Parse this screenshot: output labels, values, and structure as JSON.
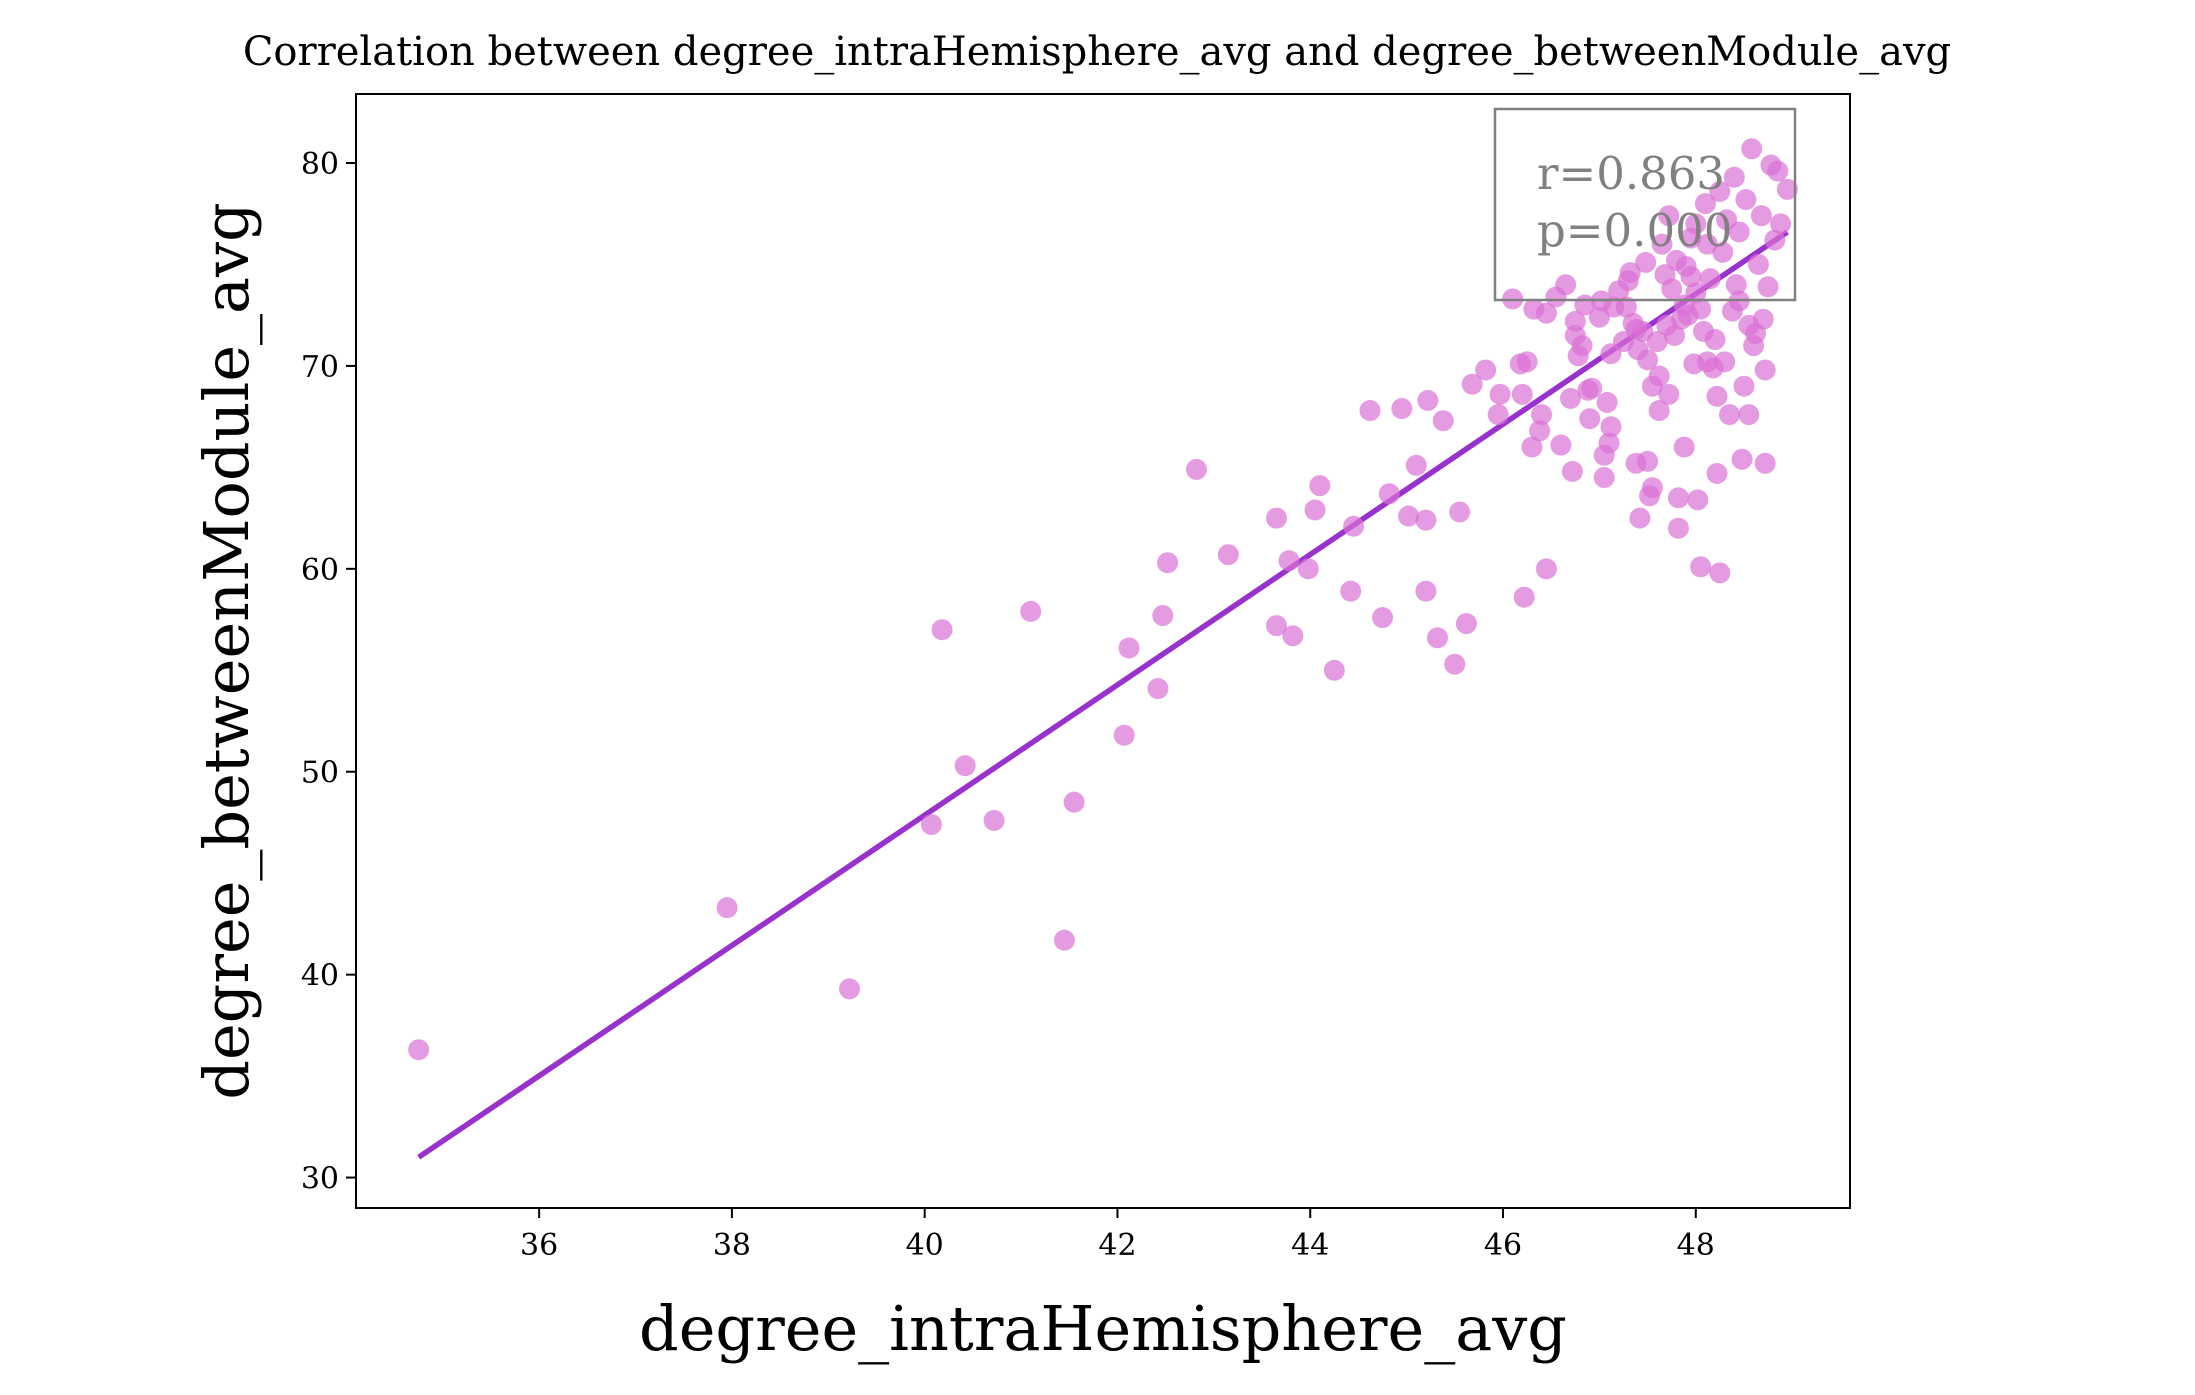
{
  "chart_data": {
    "type": "scatter",
    "title": "Correlation between degree_intraHemisphere_avg and degree_betweenModule_avg",
    "xlabel": "degree_intraHemisphere_avg",
    "ylabel": "degree_betweenModule_avg",
    "xlim": [
      34.1,
      49.6
    ],
    "ylim": [
      28.5,
      83.4
    ],
    "xticks": [
      36,
      38,
      40,
      42,
      44,
      46,
      48
    ],
    "yticks": [
      30,
      40,
      50,
      60,
      70,
      80
    ],
    "grid": false,
    "stats": {
      "r": "r=0.863",
      "p": "p=0.000"
    },
    "colors": {
      "points": "#da70d6",
      "regression": "#9932cc",
      "stats_box": "#808080"
    },
    "regression_line": [
      [
        34.75,
        31.0
      ],
      [
        48.95,
        76.6
      ]
    ],
    "points": [
      [
        34.75,
        36.3
      ],
      [
        37.95,
        43.3
      ],
      [
        39.22,
        39.3
      ],
      [
        40.07,
        47.4
      ],
      [
        40.18,
        57.0
      ],
      [
        40.42,
        50.3
      ],
      [
        40.72,
        47.6
      ],
      [
        41.1,
        57.9
      ],
      [
        41.45,
        41.7
      ],
      [
        41.55,
        48.5
      ],
      [
        42.07,
        51.8
      ],
      [
        42.12,
        56.1
      ],
      [
        42.42,
        54.1
      ],
      [
        42.47,
        57.7
      ],
      [
        42.52,
        60.3
      ],
      [
        42.82,
        64.9
      ],
      [
        43.15,
        60.7
      ],
      [
        43.65,
        62.5
      ],
      [
        43.65,
        57.2
      ],
      [
        43.78,
        60.4
      ],
      [
        43.82,
        56.7
      ],
      [
        43.98,
        60.0
      ],
      [
        44.05,
        62.9
      ],
      [
        44.1,
        64.1
      ],
      [
        44.25,
        55.0
      ],
      [
        44.42,
        58.9
      ],
      [
        44.45,
        62.1
      ],
      [
        44.62,
        67.8
      ],
      [
        44.75,
        57.6
      ],
      [
        44.82,
        63.7
      ],
      [
        44.95,
        67.9
      ],
      [
        45.02,
        62.6
      ],
      [
        45.1,
        65.1
      ],
      [
        45.2,
        62.4
      ],
      [
        45.2,
        58.9
      ],
      [
        45.22,
        68.3
      ],
      [
        45.32,
        56.6
      ],
      [
        45.38,
        67.3
      ],
      [
        45.5,
        55.3
      ],
      [
        45.55,
        62.8
      ],
      [
        45.62,
        57.3
      ],
      [
        45.68,
        69.1
      ],
      [
        45.82,
        69.8
      ],
      [
        45.95,
        67.6
      ],
      [
        45.97,
        68.6
      ],
      [
        46.1,
        73.3
      ],
      [
        46.18,
        70.1
      ],
      [
        46.2,
        68.6
      ],
      [
        46.22,
        58.6
      ],
      [
        46.25,
        70.2
      ],
      [
        46.3,
        66.0
      ],
      [
        46.32,
        72.8
      ],
      [
        46.38,
        66.8
      ],
      [
        46.4,
        67.6
      ],
      [
        46.45,
        72.6
      ],
      [
        46.45,
        60.0
      ],
      [
        46.55,
        73.4
      ],
      [
        46.6,
        66.1
      ],
      [
        46.65,
        74.0
      ],
      [
        46.7,
        68.4
      ],
      [
        46.72,
        64.8
      ],
      [
        46.75,
        71.5
      ],
      [
        46.75,
        72.2
      ],
      [
        46.78,
        70.5
      ],
      [
        46.82,
        71.0
      ],
      [
        46.85,
        73.0
      ],
      [
        46.88,
        68.8
      ],
      [
        46.9,
        67.4
      ],
      [
        46.92,
        68.9
      ],
      [
        47.0,
        72.4
      ],
      [
        47.02,
        73.2
      ],
      [
        47.05,
        65.6
      ],
      [
        47.05,
        64.5
      ],
      [
        47.08,
        68.2
      ],
      [
        47.1,
        66.2
      ],
      [
        47.12,
        70.6
      ],
      [
        47.12,
        67.0
      ],
      [
        47.15,
        72.9
      ],
      [
        47.2,
        73.7
      ],
      [
        47.25,
        71.2
      ],
      [
        47.28,
        72.9
      ],
      [
        47.3,
        74.2
      ],
      [
        47.32,
        74.6
      ],
      [
        47.35,
        72.1
      ],
      [
        47.38,
        71.8
      ],
      [
        47.38,
        65.2
      ],
      [
        47.4,
        70.8
      ],
      [
        47.42,
        62.5
      ],
      [
        47.45,
        71.7
      ],
      [
        47.48,
        75.1
      ],
      [
        47.5,
        70.3
      ],
      [
        47.5,
        65.3
      ],
      [
        47.52,
        63.6
      ],
      [
        47.55,
        69.0
      ],
      [
        47.55,
        64.0
      ],
      [
        47.6,
        71.2
      ],
      [
        47.62,
        67.8
      ],
      [
        47.62,
        69.5
      ],
      [
        47.65,
        76.0
      ],
      [
        47.68,
        74.5
      ],
      [
        47.7,
        72.0
      ],
      [
        47.72,
        68.6
      ],
      [
        47.72,
        77.4
      ],
      [
        47.75,
        73.8
      ],
      [
        47.78,
        71.5
      ],
      [
        47.8,
        75.2
      ],
      [
        47.82,
        63.5
      ],
      [
        47.82,
        62.0
      ],
      [
        47.85,
        72.3
      ],
      [
        47.88,
        66.0
      ],
      [
        47.9,
        74.9
      ],
      [
        47.92,
        72.5
      ],
      [
        47.95,
        76.3
      ],
      [
        47.98,
        70.1
      ],
      [
        48.0,
        77.0
      ],
      [
        48.02,
        63.4
      ],
      [
        48.05,
        60.1
      ],
      [
        48.05,
        72.8
      ],
      [
        48.08,
        71.7
      ],
      [
        48.1,
        78.0
      ],
      [
        48.12,
        70.2
      ],
      [
        48.15,
        74.3
      ],
      [
        48.18,
        69.9
      ],
      [
        48.2,
        71.3
      ],
      [
        48.22,
        68.5
      ],
      [
        48.22,
        64.7
      ],
      [
        48.25,
        59.8
      ],
      [
        48.28,
        75.6
      ],
      [
        48.3,
        70.2
      ],
      [
        48.32,
        77.2
      ],
      [
        48.35,
        67.6
      ],
      [
        48.38,
        72.7
      ],
      [
        48.4,
        79.3
      ],
      [
        48.42,
        74.0
      ],
      [
        48.45,
        76.6
      ],
      [
        48.48,
        65.4
      ],
      [
        48.5,
        69.0
      ],
      [
        48.52,
        78.2
      ],
      [
        48.55,
        72.0
      ],
      [
        48.55,
        67.6
      ],
      [
        48.58,
        80.7
      ],
      [
        48.6,
        71.0
      ],
      [
        48.62,
        71.6
      ],
      [
        48.65,
        75.0
      ],
      [
        48.68,
        77.4
      ],
      [
        48.7,
        72.3
      ],
      [
        48.72,
        69.8
      ],
      [
        48.72,
        65.2
      ],
      [
        48.75,
        73.9
      ],
      [
        48.78,
        79.9
      ],
      [
        48.82,
        76.2
      ],
      [
        48.85,
        79.6
      ],
      [
        48.88,
        77.0
      ],
      [
        48.95,
        78.7
      ],
      [
        48.0,
        73.6
      ],
      [
        47.88,
        73.0
      ],
      [
        48.12,
        76.0
      ],
      [
        48.25,
        78.6
      ],
      [
        47.95,
        74.4
      ],
      [
        48.45,
        73.2
      ]
    ]
  }
}
